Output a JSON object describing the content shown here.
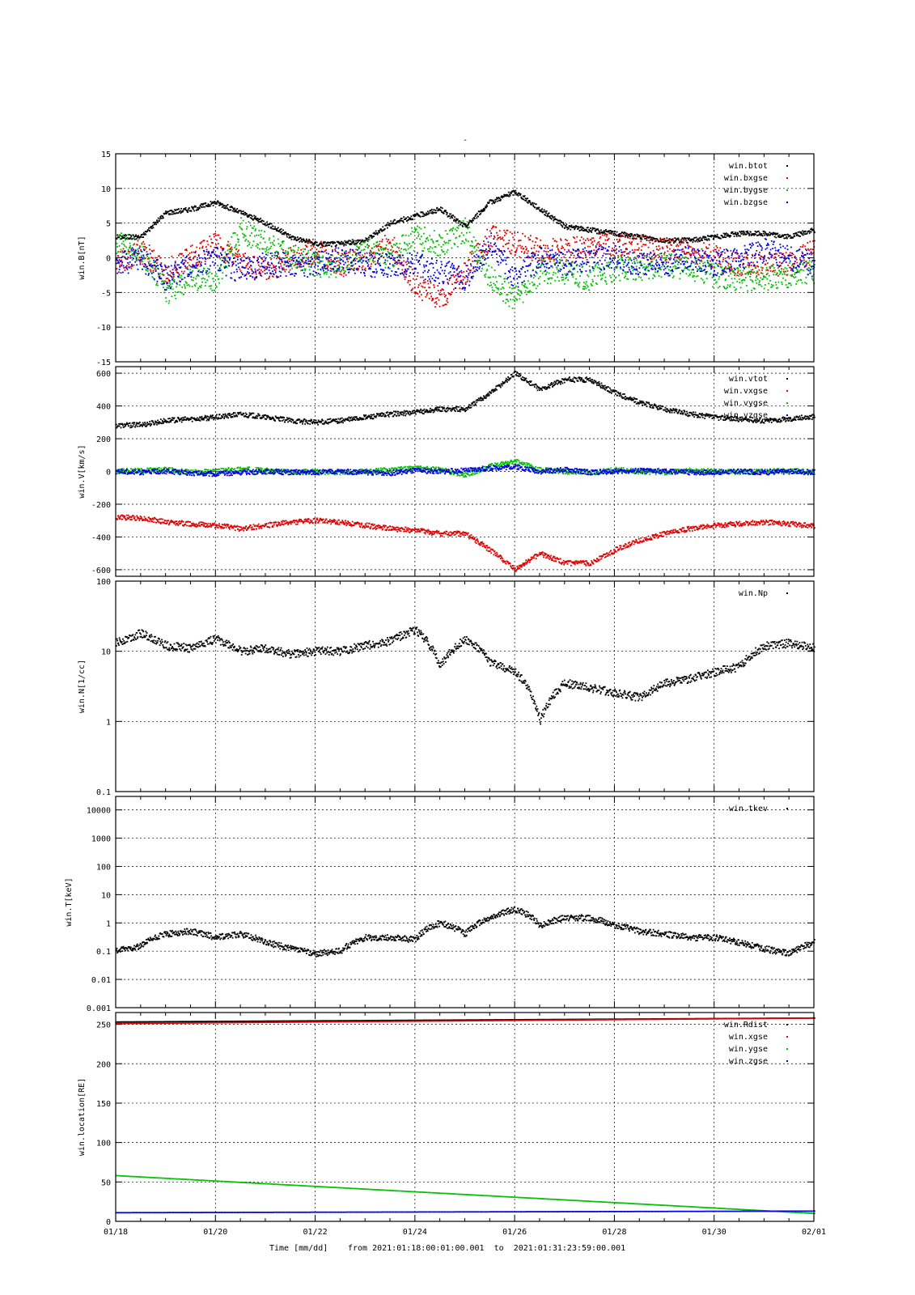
{
  "title_mark": "-",
  "footer": {
    "time_label": "Time [mm/dd]",
    "range_text": "from 2021:01:18:00:01:00.001  to  2021:01:31:23:59:00.001"
  },
  "chart_data": [
    {
      "type": "scatter",
      "ylabel": "win.B[nT]",
      "yscale": "linear",
      "ylim": [
        -15,
        15
      ],
      "yticks": [
        -15,
        -10,
        -5,
        0,
        5,
        10,
        15
      ],
      "xlim": [
        0,
        14
      ],
      "xunit": "days since 01/18",
      "legend": "top-right",
      "series": [
        {
          "name": "win.btot",
          "color": "#000000",
          "x": [
            0,
            0.5,
            1,
            1.5,
            2,
            2.5,
            3,
            3.5,
            4,
            4.5,
            5,
            5.5,
            6,
            6.5,
            7,
            7.5,
            8,
            8.5,
            9,
            9.5,
            10,
            10.5,
            11,
            11.5,
            12,
            12.5,
            13,
            13.5,
            14
          ],
          "values": [
            3,
            3,
            6.5,
            7,
            8,
            6.5,
            5,
            3,
            2,
            2,
            2.5,
            5,
            6,
            7,
            4.5,
            8,
            9.5,
            7,
            4.5,
            4,
            3.5,
            3,
            2.5,
            2.5,
            3,
            3.5,
            3.5,
            3,
            4
          ]
        },
        {
          "name": "win.bxgse",
          "color": "#e00000",
          "x": [
            0,
            0.5,
            1,
            1.5,
            2,
            2.5,
            3,
            3.5,
            4,
            4.5,
            5,
            5.5,
            6,
            6.5,
            7,
            7.5,
            8,
            8.5,
            9,
            9.5,
            10,
            10.5,
            11,
            11.5,
            12,
            12.5,
            13,
            13.5,
            14
          ],
          "values": [
            -1,
            1,
            -2,
            0,
            2,
            -1,
            -2,
            0,
            1,
            -1,
            0,
            2,
            -4,
            -6,
            -2,
            3,
            2,
            1,
            1,
            1.5,
            2,
            1.5,
            1,
            1,
            0,
            -1,
            -1,
            -1,
            1
          ]
        },
        {
          "name": "win.bygse",
          "color": "#00c000",
          "x": [
            0,
            0.5,
            1,
            1.5,
            2,
            2.5,
            3,
            3.5,
            4,
            4.5,
            5,
            5.5,
            6,
            6.5,
            7,
            7.5,
            8,
            8.5,
            9,
            9.5,
            10,
            10.5,
            11,
            11.5,
            12,
            12.5,
            13,
            13.5,
            14
          ],
          "values": [
            2,
            1,
            -5,
            -3,
            -3,
            4,
            2,
            0,
            -1,
            -1,
            1,
            0,
            3,
            2,
            4,
            -3,
            -6,
            -2,
            -2,
            -3,
            -1.5,
            -1.5,
            -1,
            -1.5,
            -2.5,
            -3,
            -3,
            -2.5,
            -2
          ]
        },
        {
          "name": "win.bzgse",
          "color": "#0000e0",
          "x": [
            0,
            0.5,
            1,
            1.5,
            2,
            2.5,
            3,
            3.5,
            4,
            4.5,
            5,
            5.5,
            6,
            6.5,
            7,
            7.5,
            8,
            8.5,
            9,
            9.5,
            10,
            10.5,
            11,
            11.5,
            12,
            12.5,
            13,
            13.5,
            14
          ],
          "values": [
            -1,
            0,
            -3,
            -1,
            0,
            -2,
            -1,
            -1,
            -1,
            0,
            -1,
            -1,
            -1,
            -2,
            -3,
            2,
            -3,
            0,
            -1,
            0,
            0,
            -1,
            -1,
            0,
            -1,
            0,
            1,
            0,
            -1
          ]
        }
      ]
    },
    {
      "type": "scatter",
      "ylabel": "win.V[km/s]",
      "yscale": "linear",
      "ylim": [
        -640,
        640
      ],
      "yticks": [
        -600,
        -400,
        -200,
        0,
        200,
        400,
        600
      ],
      "xlim": [
        0,
        14
      ],
      "legend": "top-right",
      "series": [
        {
          "name": "win.vtot",
          "color": "#000000",
          "x": [
            0,
            0.5,
            1,
            1.5,
            2,
            2.5,
            3,
            3.5,
            4,
            4.5,
            5,
            5.5,
            6,
            6.5,
            7,
            7.5,
            8,
            8.5,
            9,
            9.5,
            10,
            10.5,
            11,
            11.5,
            12,
            12.5,
            13,
            13.5,
            14
          ],
          "values": [
            280,
            285,
            310,
            320,
            330,
            350,
            330,
            310,
            300,
            310,
            330,
            350,
            360,
            380,
            380,
            480,
            600,
            500,
            560,
            560,
            480,
            420,
            380,
            350,
            330,
            320,
            310,
            320,
            335
          ]
        },
        {
          "name": "win.vxgse",
          "color": "#e00000",
          "x": [
            0,
            0.5,
            1,
            1.5,
            2,
            2.5,
            3,
            3.5,
            4,
            4.5,
            5,
            5.5,
            6,
            6.5,
            7,
            7.5,
            8,
            8.5,
            9,
            9.5,
            10,
            10.5,
            11,
            11.5,
            12,
            12.5,
            13,
            13.5,
            14
          ],
          "values": [
            -280,
            -285,
            -310,
            -320,
            -330,
            -350,
            -330,
            -310,
            -300,
            -310,
            -330,
            -350,
            -360,
            -380,
            -380,
            -480,
            -600,
            -500,
            -560,
            -560,
            -480,
            -420,
            -380,
            -350,
            -330,
            -320,
            -310,
            -320,
            -335
          ]
        },
        {
          "name": "win.vygse",
          "color": "#00c000",
          "x": [
            0,
            0.5,
            1,
            1.5,
            2,
            2.5,
            3,
            3.5,
            4,
            4.5,
            5,
            5.5,
            6,
            6.5,
            7,
            7.5,
            8,
            8.5,
            9,
            9.5,
            10,
            10.5,
            11,
            11.5,
            12,
            12.5,
            13,
            13.5,
            14
          ],
          "values": [
            0,
            5,
            10,
            -5,
            0,
            15,
            5,
            -5,
            0,
            -5,
            0,
            10,
            20,
            10,
            -20,
            30,
            60,
            10,
            0,
            -10,
            10,
            0,
            -5,
            5,
            0,
            -5,
            0,
            5,
            -5
          ]
        },
        {
          "name": "win.vzgse",
          "color": "#0000e0",
          "x": [
            0,
            0.5,
            1,
            1.5,
            2,
            2.5,
            3,
            3.5,
            4,
            4.5,
            5,
            5.5,
            6,
            6.5,
            7,
            7.5,
            8,
            8.5,
            9,
            9.5,
            10,
            10.5,
            11,
            11.5,
            12,
            12.5,
            13,
            13.5,
            14
          ],
          "values": [
            0,
            -5,
            0,
            -10,
            -15,
            -5,
            0,
            -5,
            -5,
            0,
            -5,
            -10,
            5,
            0,
            5,
            20,
            30,
            0,
            10,
            -5,
            0,
            5,
            0,
            -5,
            -5,
            0,
            -5,
            0,
            -5
          ]
        }
      ]
    },
    {
      "type": "scatter",
      "ylabel": "win.N[1/cc]",
      "yscale": "log",
      "ylim": [
        0.1,
        100
      ],
      "yticks": [
        0.1,
        1,
        10,
        100
      ],
      "xlim": [
        0,
        14
      ],
      "legend": "top-right",
      "series": [
        {
          "name": "win.Np",
          "color": "#000000",
          "x": [
            0,
            0.5,
            1,
            1.5,
            2,
            2.5,
            3,
            3.5,
            4,
            4.5,
            5,
            5.5,
            6,
            6.5,
            7,
            7.5,
            8,
            8.5,
            9,
            9.5,
            10,
            10.5,
            11,
            11.5,
            12,
            12.5,
            13,
            13.5,
            14
          ],
          "values": [
            13,
            18,
            12,
            11,
            15,
            10,
            11,
            9,
            10,
            10,
            12,
            14,
            20,
            6,
            15,
            7,
            5,
            1,
            3.5,
            3,
            2.5,
            2.2,
            3.5,
            4,
            5,
            6,
            12,
            13,
            11
          ]
        }
      ]
    },
    {
      "type": "scatter",
      "ylabel": "win.T[keV]",
      "yscale": "log",
      "ylim": [
        0.001,
        30000
      ],
      "yticks": [
        0.001,
        0.01,
        0.1,
        1,
        10,
        100,
        1000,
        10000
      ],
      "xlim": [
        0,
        14
      ],
      "legend": "top-right",
      "series": [
        {
          "name": "win.tkev",
          "color": "#000000",
          "x": [
            0,
            0.5,
            1,
            1.5,
            2,
            2.5,
            3,
            3.5,
            4,
            4.5,
            5,
            5.5,
            6,
            6.5,
            7,
            7.5,
            8,
            8.5,
            9,
            9.5,
            10,
            10.5,
            11,
            11.5,
            12,
            12.5,
            13,
            13.5,
            14
          ],
          "values": [
            0.1,
            0.15,
            0.4,
            0.5,
            0.3,
            0.4,
            0.2,
            0.12,
            0.08,
            0.1,
            0.3,
            0.3,
            0.25,
            1,
            0.4,
            1.5,
            3,
            0.8,
            1.5,
            1.5,
            0.8,
            0.5,
            0.4,
            0.3,
            0.3,
            0.2,
            0.12,
            0.08,
            0.2
          ]
        }
      ]
    },
    {
      "type": "scatter",
      "ylabel": "win.location[RE]",
      "yscale": "linear",
      "ylim": [
        0,
        265
      ],
      "yticks": [
        0,
        50,
        100,
        150,
        200,
        250
      ],
      "xlim": [
        0,
        14
      ],
      "legend": "top-right",
      "xticks": [
        "01/18",
        "01/20",
        "01/22",
        "01/24",
        "01/26",
        "01/28",
        "01/30",
        "02/01"
      ],
      "series": [
        {
          "name": "win.Rdist",
          "color": "#000000",
          "x": [
            0,
            14
          ],
          "values": [
            253,
            258
          ]
        },
        {
          "name": "win.xgse",
          "color": "#e00000",
          "x": [
            0,
            14
          ],
          "values": [
            251,
            258
          ]
        },
        {
          "name": "win.ygse",
          "color": "#00c000",
          "x": [
            0,
            14
          ],
          "values": [
            58,
            10
          ]
        },
        {
          "name": "win.zgse",
          "color": "#0000e0",
          "x": [
            0,
            14
          ],
          "values": [
            11,
            13
          ]
        }
      ]
    }
  ]
}
